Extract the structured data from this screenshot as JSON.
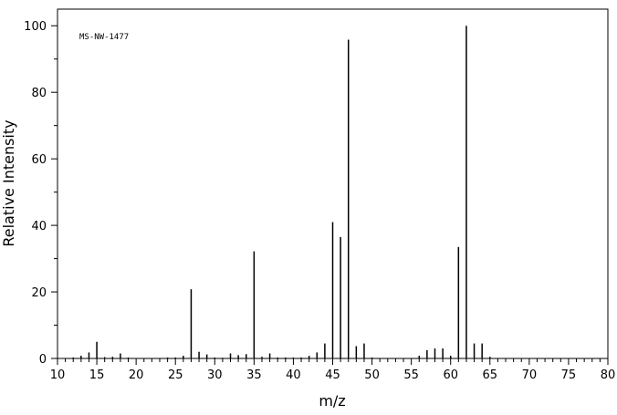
{
  "chart_data": {
    "type": "bar",
    "annotation": "MS-NW-1477",
    "xlabel": "m/z",
    "ylabel": "Relative Intensity",
    "xlim": [
      10,
      80
    ],
    "ylim": [
      0,
      105
    ],
    "x_ticks": [
      10,
      15,
      20,
      25,
      30,
      35,
      40,
      45,
      50,
      55,
      60,
      65,
      70,
      75,
      80
    ],
    "x_minor_step": 1,
    "y_ticks": [
      0,
      20,
      40,
      60,
      80,
      100
    ],
    "y_minor_step": 10,
    "grid": false,
    "x": [
      12,
      13,
      14,
      15,
      16,
      17,
      18,
      19,
      24,
      25,
      26,
      27,
      28,
      29,
      30,
      31,
      32,
      33,
      34,
      35,
      36,
      37,
      38,
      39,
      40,
      41,
      42,
      43,
      44,
      45,
      46,
      47,
      48,
      49,
      50,
      56,
      57,
      58,
      59,
      60,
      61,
      62,
      63,
      64,
      65
    ],
    "values": [
      0.3,
      0.8,
      1.8,
      5.0,
      0.4,
      0.5,
      1.5,
      0.3,
      0.3,
      0.3,
      0.8,
      20.8,
      2.0,
      1.2,
      0.3,
      0.2,
      1.5,
      1.0,
      1.3,
      32.2,
      0.5,
      1.5,
      0.3,
      0.3,
      0.3,
      0.3,
      0.8,
      1.8,
      4.5,
      41.0,
      36.5,
      95.8,
      3.7,
      4.5,
      0.3,
      0.8,
      2.5,
      3.0,
      3.0,
      0.8,
      33.5,
      100.0,
      4.5,
      4.5,
      0.5
    ]
  }
}
